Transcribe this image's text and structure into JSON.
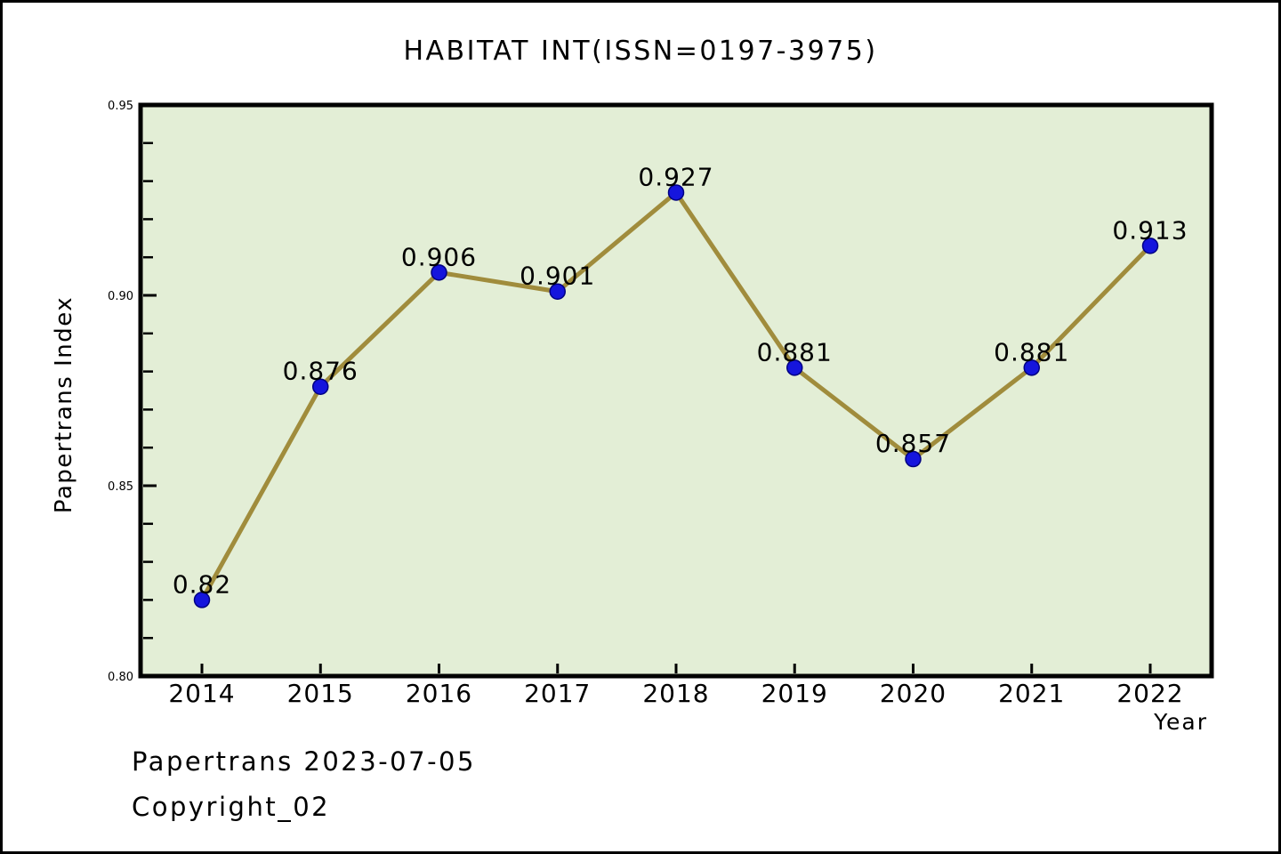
{
  "title": "HABITAT INT(ISSN=0197-3975)",
  "footer": {
    "line1": "Papertrans 2023-07-05",
    "line2": "Copyright_02"
  },
  "chart_data": {
    "type": "line",
    "title": "HABITAT INT(ISSN=0197-3975)",
    "xlabel": "Year",
    "ylabel": "Papertrans Index",
    "categories": [
      "2014",
      "2015",
      "2016",
      "2017",
      "2018",
      "2019",
      "2020",
      "2021",
      "2022"
    ],
    "values": [
      0.82,
      0.876,
      0.906,
      0.901,
      0.927,
      0.881,
      0.857,
      0.881,
      0.913
    ],
    "point_labels": [
      "0.82",
      "0.876",
      "0.906",
      "0.901",
      "0.927",
      "0.881",
      "0.857",
      "0.881",
      "0.913"
    ],
    "ylim": [
      0.8,
      0.95
    ],
    "ytick_major": [
      0.8,
      0.85,
      0.9,
      0.95
    ],
    "ytick_labels": [
      "0.80",
      "0.85",
      "0.90",
      "0.95"
    ],
    "ytick_minor_step": 0.01,
    "grid": false,
    "legend": null,
    "colors": {
      "line": "#a08c3c",
      "point_fill": "#1515dd",
      "point_edge": "#000082",
      "plot_bg": "#e3eed6",
      "axis": "#000000",
      "text": "#000000"
    }
  }
}
